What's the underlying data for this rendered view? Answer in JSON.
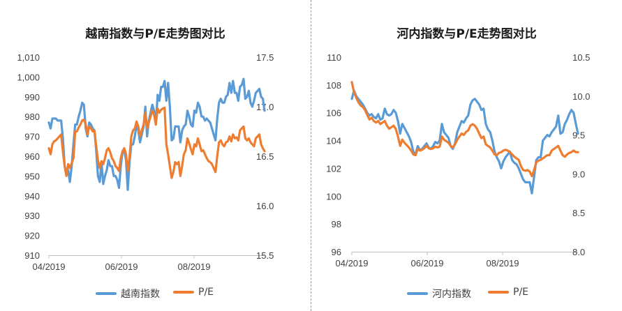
{
  "chart_data": [
    {
      "type": "line",
      "title": "越南指数与P/E走势图对比",
      "x_ticks": [
        "04/2019",
        "06/2019",
        "08/2019"
      ],
      "y_left": {
        "ylim": [
          910,
          1010
        ],
        "ticks": [
          "910",
          "920",
          "930",
          "940",
          "950",
          "960",
          "970",
          "980",
          "990",
          "1,000",
          "1,010"
        ]
      },
      "y_right": {
        "ylim": [
          15.5,
          17.5
        ],
        "ticks": [
          "15.5",
          "16.0",
          "16.5",
          "17.0",
          "17.5"
        ]
      },
      "legend": {
        "placement": "bottom"
      },
      "series": [
        {
          "name": "越南指数",
          "axis": "left",
          "color": "#5B9BD5",
          "values": [
            977,
            974,
            979,
            979,
            979,
            978,
            978,
            978,
            969,
            955,
            952,
            953,
            947,
            955,
            966,
            976,
            976,
            980,
            983,
            987,
            986,
            974,
            970,
            977,
            976,
            974,
            973,
            963,
            950,
            947,
            957,
            946,
            950,
            953,
            958,
            955,
            955,
            950,
            950,
            948,
            944,
            955,
            962,
            963,
            958,
            943,
            957,
            966,
            966,
            970,
            976,
            973,
            967,
            971,
            975,
            985,
            970,
            978,
            982,
            986,
            983,
            976,
            991,
            988,
            995,
            995,
            998,
            988,
            997,
            985,
            968,
            969,
            975,
            975,
            975,
            967,
            973,
            975,
            976,
            983,
            980,
            976,
            975,
            983,
            982,
            987,
            985,
            980,
            980,
            978,
            979,
            978,
            977,
            974,
            971,
            968,
            979,
            987,
            989,
            987,
            987,
            990,
            991,
            997,
            992,
            998,
            992,
            992,
            988,
            995,
            996,
            999,
            989,
            990,
            993,
            987,
            985,
            988,
            992,
            993,
            994,
            990,
            989,
            983
          ]
        },
        {
          "name": "P/E",
          "axis": "right",
          "color": "#ED7D31",
          "values": [
            16.58,
            16.52,
            16.62,
            16.65,
            16.66,
            16.68,
            16.7,
            16.72,
            16.55,
            16.4,
            16.3,
            16.42,
            16.38,
            16.43,
            16.48,
            16.75,
            16.75,
            16.79,
            16.82,
            16.86,
            16.87,
            16.82,
            16.72,
            16.8,
            16.78,
            16.75,
            16.76,
            16.6,
            16.46,
            16.38,
            16.45,
            16.42,
            16.48,
            16.56,
            16.58,
            16.54,
            16.48,
            16.45,
            16.4,
            16.38,
            16.35,
            16.48,
            16.55,
            16.58,
            16.52,
            16.35,
            16.5,
            16.7,
            16.76,
            16.78,
            16.85,
            16.8,
            16.7,
            16.76,
            16.82,
            16.94,
            16.78,
            16.84,
            16.9,
            16.96,
            16.92,
            16.82,
            16.98,
            16.94,
            16.97,
            16.98,
            16.99,
            16.62,
            16.52,
            16.4,
            16.28,
            16.34,
            16.44,
            16.42,
            16.44,
            16.3,
            16.4,
            16.52,
            16.56,
            16.68,
            16.63,
            16.57,
            16.52,
            16.62,
            16.6,
            16.68,
            16.62,
            16.55,
            16.56,
            16.52,
            16.48,
            16.45,
            16.44,
            16.42,
            16.38,
            16.34,
            16.5,
            16.64,
            16.66,
            16.62,
            16.6,
            16.64,
            16.65,
            16.7,
            16.65,
            16.72,
            16.68,
            16.69,
            16.66,
            16.76,
            16.78,
            16.8,
            16.68,
            16.66,
            16.68,
            16.64,
            16.62,
            16.6,
            16.68,
            16.7,
            16.72,
            16.62,
            16.58,
            16.55
          ]
        }
      ]
    },
    {
      "type": "line",
      "title": "河内指数与P/E走势图对比",
      "x_ticks": [
        "04/2019",
        "06/2019",
        "08/2019"
      ],
      "y_left": {
        "ylim": [
          96,
          110
        ],
        "ticks": [
          "96",
          "98",
          "100",
          "102",
          "104",
          "106",
          "108",
          "110"
        ]
      },
      "y_right": {
        "ylim": [
          8.0,
          10.5
        ],
        "ticks": [
          "8.0",
          "8.5",
          "9.0",
          "9.5",
          "10.0",
          "10.5"
        ]
      },
      "legend": {
        "placement": "bottom"
      },
      "series": [
        {
          "name": "河内指数",
          "axis": "left",
          "color": "#5B9BD5",
          "values": [
            107.0,
            107.6,
            107.2,
            107.0,
            106.8,
            106.6,
            106.3,
            106.0,
            105.8,
            105.9,
            105.7,
            105.6,
            105.9,
            105.5,
            105.6,
            106.3,
            105.9,
            105.8,
            105.9,
            106.2,
            106.0,
            105.4,
            104.5,
            105.2,
            104.9,
            104.6,
            104.3,
            103.9,
            103.2,
            103.0,
            103.6,
            103.3,
            103.4,
            103.6,
            103.8,
            103.5,
            103.4,
            103.6,
            103.9,
            103.8,
            104.0,
            105.2,
            104.6,
            104.4,
            104.2,
            103.6,
            103.4,
            103.8,
            104.6,
            105.0,
            105.4,
            105.3,
            105.6,
            105.8,
            106.6,
            106.9,
            107.0,
            106.8,
            106.6,
            106.2,
            106.3,
            105.2,
            104.8,
            104.6,
            104.0,
            103.2,
            102.8,
            102.5,
            102.0,
            102.5,
            102.8,
            103.0,
            103.2,
            102.6,
            102.4,
            102.3,
            102.0,
            101.6,
            101.2,
            101.0,
            101.0,
            101.0,
            100.2,
            101.4,
            102.6,
            102.8,
            102.8,
            104.0,
            104.2,
            104.4,
            104.3,
            104.6,
            104.8,
            105.0,
            105.8,
            104.5,
            104.6,
            105.2,
            105.5,
            105.9,
            106.2,
            106.0,
            105.2,
            104.5
          ]
        },
        {
          "name": "P/E",
          "axis": "right",
          "color": "#ED7D31",
          "values": [
            10.18,
            10.05,
            9.98,
            9.92,
            9.88,
            9.86,
            9.82,
            9.76,
            9.7,
            9.72,
            9.68,
            9.66,
            9.68,
            9.64,
            9.66,
            9.68,
            9.62,
            9.58,
            9.6,
            9.62,
            9.58,
            9.48,
            9.36,
            9.44,
            9.4,
            9.37,
            9.34,
            9.3,
            9.25,
            9.24,
            9.32,
            9.3,
            9.31,
            9.33,
            9.36,
            9.33,
            9.32,
            9.33,
            9.35,
            9.34,
            9.35,
            9.48,
            9.44,
            9.42,
            9.4,
            9.36,
            9.34,
            9.38,
            9.44,
            9.48,
            9.52,
            9.5,
            9.54,
            9.56,
            9.62,
            9.64,
            9.62,
            9.58,
            9.52,
            9.46,
            9.48,
            9.38,
            9.36,
            9.34,
            9.3,
            9.25,
            9.24,
            9.27,
            9.28,
            9.3,
            9.31,
            9.3,
            9.28,
            9.25,
            9.22,
            9.2,
            9.18,
            9.1,
            9.05,
            9.04,
            9.05,
            9.03,
            8.97,
            9.05,
            9.15,
            9.17,
            9.18,
            9.2,
            9.22,
            9.24,
            9.24,
            9.3,
            9.32,
            9.34,
            9.36,
            9.3,
            9.24,
            9.22,
            9.25,
            9.27,
            9.28,
            9.3,
            9.28,
            9.28
          ]
        }
      ]
    }
  ]
}
